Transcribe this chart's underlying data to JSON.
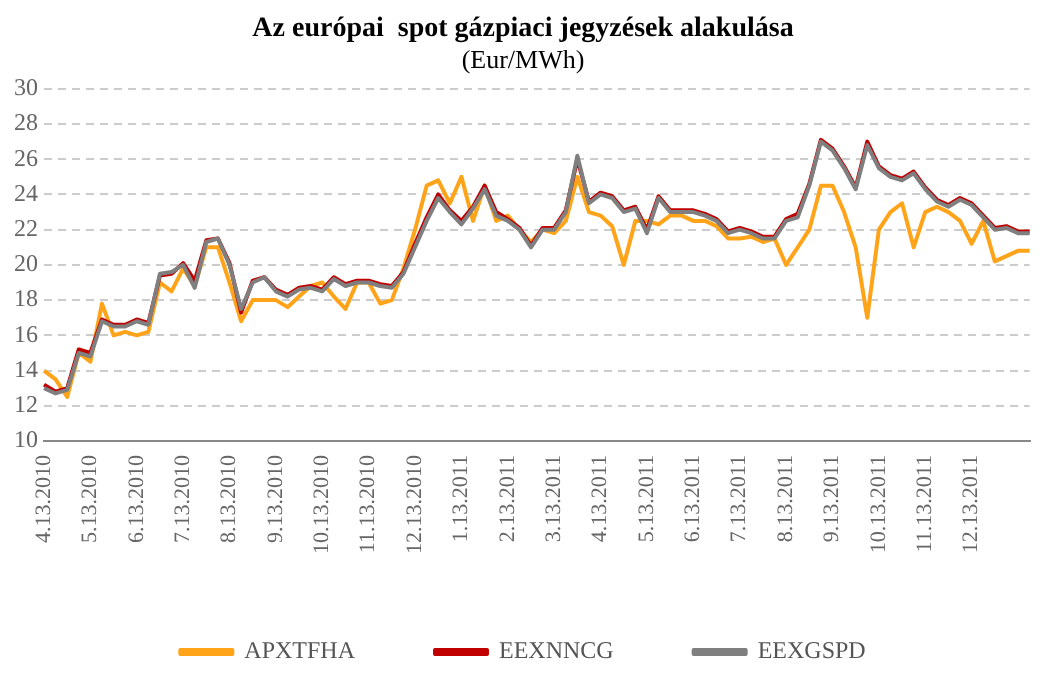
{
  "chart_data": {
    "type": "line",
    "title": "Az európai  spot gázpiaci jegyzések alakulása",
    "subtitle": "(Eur/MWh)",
    "categories": [
      "4.13.2010",
      null,
      null,
      null,
      "5.13.2010",
      null,
      null,
      null,
      "6.13.2010",
      null,
      null,
      null,
      "7.13.2010",
      null,
      null,
      null,
      "8.13.2010",
      null,
      null,
      null,
      "9.13.2010",
      null,
      null,
      null,
      "10.13.2010",
      null,
      null,
      null,
      "11.13.2010",
      null,
      null,
      null,
      "12.13.2010",
      null,
      null,
      null,
      "1.13.2011",
      null,
      null,
      null,
      "2.13.2011",
      null,
      null,
      null,
      "3.13.2011",
      null,
      null,
      null,
      "4.13.2011",
      null,
      null,
      null,
      "5.13.2011",
      null,
      null,
      null,
      "6.13.2011",
      null,
      null,
      null,
      "7.13.2011",
      null,
      null,
      null,
      "8.13.2011",
      null,
      null,
      null,
      "9.13.2011",
      null,
      null,
      null,
      "10.13.2011",
      null,
      null,
      null,
      "11.13.2011",
      null,
      null,
      null,
      "12.13.2011",
      null,
      null,
      null,
      null,
      null
    ],
    "series": [
      {
        "name": "APXTFHA",
        "color": "#ffa319",
        "values": [
          14,
          13.5,
          12.5,
          15,
          14.5,
          17.8,
          16,
          16.2,
          16,
          16.2,
          19,
          18.5,
          19.8,
          18.8,
          21,
          21,
          19,
          16.8,
          18,
          18,
          18,
          17.6,
          18.2,
          18.8,
          19,
          18.2,
          17.5,
          19,
          19,
          17.8,
          18,
          19.8,
          22,
          24.5,
          24.8,
          23.5,
          25,
          22.5,
          24.5,
          22.5,
          22.8,
          22,
          21.3,
          22,
          21.8,
          22.5,
          25,
          23,
          22.8,
          22.2,
          20,
          22.5,
          22.5,
          22.3,
          22.8,
          22.8,
          22.5,
          22.5,
          22.2,
          21.5,
          21.5,
          21.6,
          21.3,
          21.5,
          20,
          21,
          22,
          24.5,
          24.5,
          23,
          21,
          17,
          22,
          23,
          23.5,
          21,
          23,
          23.3,
          23,
          22.5,
          21.2,
          22.5,
          20.2,
          20.5,
          20.8,
          20.8
        ]
      },
      {
        "name": "EEXNNCG",
        "color": "#c00000",
        "values": [
          13.2,
          12.8,
          13,
          15.2,
          15,
          16.9,
          16.6,
          16.6,
          16.9,
          16.7,
          19.4,
          19.5,
          20.1,
          19.1,
          21.4,
          21.5,
          20.1,
          17.3,
          19.1,
          19.3,
          18.6,
          18.3,
          18.7,
          18.8,
          18.6,
          19.3,
          18.9,
          19.1,
          19.1,
          18.9,
          18.8,
          19.6,
          21.2,
          22.7,
          24,
          23.1,
          22.5,
          23.3,
          24.5,
          23,
          22.6,
          22.1,
          21.1,
          22.1,
          22.1,
          23.1,
          26,
          23.6,
          24.1,
          23.9,
          23.1,
          23.3,
          22,
          23.9,
          23.1,
          23.1,
          23.1,
          22.9,
          22.6,
          21.9,
          22.1,
          21.9,
          21.6,
          21.6,
          22.6,
          22.9,
          24.6,
          27.1,
          26.6,
          25.6,
          24.4,
          27,
          25.6,
          25.1,
          24.9,
          25.3,
          24.4,
          23.7,
          23.4,
          23.8,
          23.5,
          22.8,
          22.1,
          22.2,
          21.9,
          21.9
        ]
      },
      {
        "name": "EEXGSPD",
        "color": "#7f7f7f",
        "values": [
          13,
          12.7,
          12.9,
          15,
          14.8,
          16.8,
          16.5,
          16.5,
          16.8,
          16.6,
          19.5,
          19.6,
          20,
          18.7,
          21.3,
          21.5,
          20,
          17.5,
          19,
          19.3,
          18.5,
          18.2,
          18.6,
          18.7,
          18.5,
          19.2,
          18.8,
          19,
          19,
          18.8,
          18.7,
          19.5,
          21,
          22.5,
          23.8,
          23,
          22.3,
          23.2,
          24.3,
          22.8,
          22.5,
          22,
          21,
          22,
          22,
          23,
          26.2,
          23.5,
          24,
          23.8,
          23,
          23.2,
          21.8,
          23.8,
          23,
          23,
          23,
          22.8,
          22.5,
          21.8,
          22,
          21.8,
          21.5,
          21.5,
          22.5,
          22.7,
          24.5,
          27,
          26.5,
          25.5,
          24.3,
          26.8,
          25.5,
          25,
          24.8,
          25.2,
          24.3,
          23.6,
          23.3,
          23.7,
          23.4,
          22.7,
          22,
          22.1,
          21.8,
          21.8
        ]
      }
    ],
    "ylim": [
      10,
      30
    ],
    "yticks": [
      10,
      12,
      14,
      16,
      18,
      20,
      22,
      24,
      26,
      28,
      30
    ],
    "grid": "y",
    "legend": "bottom",
    "marker": "none",
    "line_style": "solid"
  }
}
